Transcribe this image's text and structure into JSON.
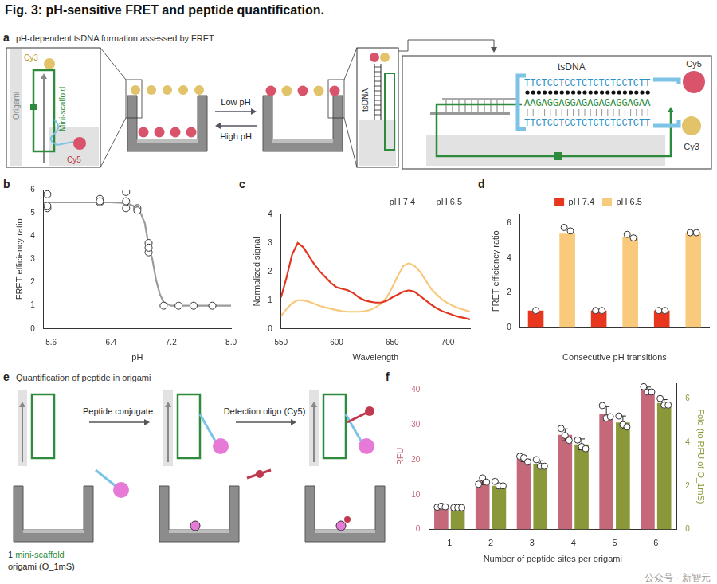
{
  "title": "Fig. 3: pH-sensitive FRET and peptide quantification.",
  "watermark": "公众号 · 新智元",
  "panel_letters": [
    "a",
    "b",
    "c",
    "d",
    "e",
    "f"
  ],
  "panel_a": {
    "heading": "pH-dependent tsDNA formation assessed by FRET",
    "cy3": "Cy3",
    "cy5": "Cy5",
    "origami": "Origami",
    "mini_scaffold": "Mini-scaffold",
    "low_ph": "Low pH",
    "high_ph": "High pH",
    "tsdna": "tsDNA",
    "sequences": [
      "TTCTCCTCCTCTCTCTCCTCTT",
      "AAGAGGAGGAGAGAGAGGAGAA",
      "TTCTCCTCCTCTCTCTCCTCTT"
    ]
  },
  "panel_e": {
    "heading": "Quantification of peptide in origami",
    "peptide_conjugate": "Peptide conjugate",
    "detection_oligo": "Detection oligo (Cy5)",
    "caption": [
      "1",
      "mini-scaffold",
      "origami (O_1mS)"
    ]
  },
  "chart_data": [
    {
      "type": "scatter",
      "xlabel": "pH",
      "ylabel": "FRET efficiency ratio",
      "xlim": [
        5.5,
        8.0
      ],
      "xticks": [
        5.6,
        6.4,
        7.2,
        {
          "value": 8.0,
          "label": "8.0"
        }
      ],
      "ylim": [
        0,
        6
      ],
      "yticks": [
        0,
        1,
        2,
        3,
        4,
        5,
        6
      ],
      "grid": false,
      "series": [
        {
          "type": "line",
          "color": "#9a9a9a",
          "x": [
            5.5,
            6.0,
            6.4,
            6.6,
            6.7,
            6.8,
            6.85,
            6.9,
            6.95,
            7.0,
            7.05,
            7.1,
            7.2,
            7.6,
            8.0
          ],
          "values": [
            5.45,
            5.45,
            5.45,
            5.42,
            5.3,
            4.95,
            4.55,
            3.6,
            3.0,
            2.1,
            1.5,
            1.15,
            1.0,
            1.0,
            1.0
          ]
        },
        {
          "type": "scatter",
          "marker": "circle",
          "color": "#ffffff",
          "x": [
            5.55,
            5.55,
            5.55,
            6.25,
            6.25,
            6.25,
            6.6,
            6.6,
            6.6,
            6.75,
            6.75,
            6.9,
            6.9,
            6.9,
            7.1,
            7.3,
            7.5,
            7.75
          ],
          "values": [
            5.2,
            5.3,
            5.8,
            5.45,
            5.6,
            5.5,
            5.2,
            5.5,
            5.9,
            5.2,
            5.1,
            3.7,
            3.3,
            3.5,
            1.0,
            1.0,
            1.0,
            1.0
          ]
        }
      ]
    },
    {
      "type": "line",
      "xlabel": "Wavelength",
      "ylabel": "Normalized signal",
      "xlim": [
        550,
        720
      ],
      "xticks": [
        550,
        600,
        650,
        700
      ],
      "ylim": [
        0,
        4
      ],
      "yticks": [
        0,
        1,
        2,
        3,
        4
      ],
      "grid": false,
      "legend": "top-right",
      "x": [
        550,
        555,
        560,
        565,
        570,
        575,
        580,
        585,
        590,
        595,
        600,
        605,
        610,
        615,
        620,
        625,
        630,
        635,
        640,
        645,
        650,
        655,
        660,
        665,
        670,
        675,
        680,
        685,
        690,
        695,
        700,
        705,
        710,
        715,
        720
      ],
      "series": [
        {
          "name": "pH 7.4",
          "color": "#e2361f",
          "values": [
            1.1,
            1.8,
            2.6,
            3.0,
            2.85,
            2.55,
            2.25,
            2.0,
            1.8,
            1.6,
            1.45,
            1.4,
            1.35,
            1.25,
            1.1,
            1.0,
            0.95,
            0.92,
            0.92,
            0.98,
            1.1,
            1.2,
            1.3,
            1.35,
            1.3,
            1.15,
            1.0,
            0.85,
            0.72,
            0.62,
            0.55,
            0.48,
            0.42,
            0.38,
            0.33
          ]
        },
        {
          "name": "pH 6.5",
          "color": "#f7c97c",
          "values": [
            0.45,
            0.7,
            0.9,
            1.0,
            1.0,
            0.95,
            0.88,
            0.8,
            0.75,
            0.7,
            0.66,
            0.62,
            0.6,
            0.6,
            0.6,
            0.62,
            0.66,
            0.75,
            0.88,
            1.1,
            1.45,
            1.85,
            2.2,
            2.3,
            2.2,
            2.0,
            1.7,
            1.4,
            1.2,
            1.02,
            0.9,
            0.8,
            0.72,
            0.66,
            0.6
          ]
        }
      ]
    },
    {
      "type": "bar",
      "xlabel": "Consecutive pH transitions",
      "ylabel": "FRET efficiency ratio",
      "categories": [
        null,
        null,
        null,
        null,
        null,
        null
      ],
      "ylim": [
        0,
        6.5
      ],
      "yticks": [
        0,
        2,
        4,
        6
      ],
      "grid": false,
      "legend": "top",
      "series": [
        {
          "name": "pH 7.4",
          "color": "#e8361f",
          "values": [
            1.0,
            null,
            1.0,
            null,
            1.0,
            null
          ],
          "points": [
            [
              1.0
            ],
            null,
            [
              1.0,
              1.0
            ],
            null,
            [
              1.0,
              1.0
            ],
            null
          ]
        },
        {
          "name": "pH 6.5",
          "color": "#f9c97c",
          "values": [
            null,
            5.4,
            null,
            5.2,
            null,
            5.45
          ],
          "points": [
            null,
            [
              5.75,
              5.55
            ],
            null,
            [
              5.35,
              5.15
            ],
            null,
            [
              5.45,
              5.45
            ]
          ]
        }
      ]
    },
    {
      "type": "bar",
      "xlabel": "Number of peptide sites per origami",
      "ylabel": "RFU",
      "y2label": "Fold (to RFU of O_1mS)",
      "categories": [
        1,
        2,
        3,
        4,
        5,
        6
      ],
      "ylim": [
        0,
        42
      ],
      "yticks": [
        0,
        10,
        20,
        30,
        40
      ],
      "y2lim": [
        0,
        6.7
      ],
      "y2ticks": [
        0,
        2,
        4,
        6
      ],
      "grid": false,
      "series": [
        {
          "color": "#c4687a",
          "values": [
            6.5,
            13.8,
            20.3,
            27.2,
            33.3,
            40.0
          ],
          "errors": [
            0.2,
            0.9,
            0.8,
            1.7,
            2.0,
            0.9
          ],
          "points": [
            [
              6.4,
              6.7,
              6.5
            ],
            [
              13.0,
              14.8,
              13.6
            ],
            [
              21.0,
              20.6,
              19.4
            ],
            [
              29.0,
              27.0,
              25.6
            ],
            [
              35.6,
              32.0,
              32.4
            ],
            [
              41.0,
              39.5,
              39.5
            ]
          ]
        },
        {
          "axis": "y2",
          "color": "#8b983a",
          "values": [
            1.0,
            2.0,
            3.0,
            3.9,
            4.9,
            5.8
          ],
          "errors": [
            0.03,
            0.12,
            0.15,
            0.25,
            0.3,
            0.15
          ],
          "points": [
            [
              1.0,
              1.0,
              1.0
            ],
            [
              2.2,
              2.0,
              2.0
            ],
            [
              3.2,
              2.9,
              2.9
            ],
            [
              4.1,
              3.8,
              3.7
            ],
            [
              5.2,
              4.8,
              4.7
            ],
            [
              6.0,
              5.7,
              5.7
            ]
          ]
        }
      ]
    }
  ]
}
